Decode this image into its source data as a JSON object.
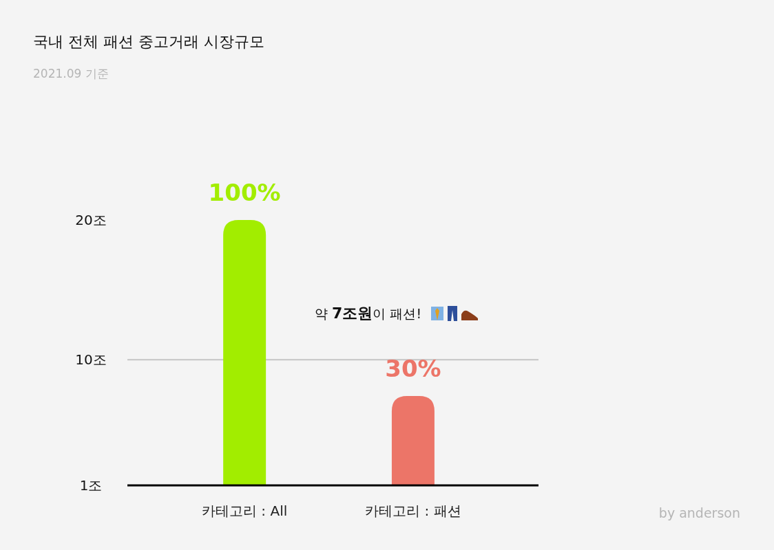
{
  "chart_data": {
    "type": "bar",
    "title": "국내 전체 패션 중고거래 시장규모",
    "subtitle": "2021.09 기준",
    "categories": [
      "카테고리 : All",
      "카테고리 : 패션"
    ],
    "values": [
      20,
      7.4
    ],
    "colors": [
      "#a2ed00",
      "#ec7568"
    ],
    "ylim": [
      1,
      20
    ],
    "yticks": [
      {
        "value": 1,
        "label": "1조"
      },
      {
        "value": 10,
        "label": "10조"
      },
      {
        "value": 20,
        "label": "20조"
      }
    ],
    "ref_lines": [
      {
        "axis": "y",
        "value": 10,
        "color": "#c4c4c4"
      }
    ],
    "annotations": [
      "약 **7조원**이 패션!",
      "by anderson",
      {
        "text": "100%",
        "x": "카테고리 : All",
        "y": 20
      },
      {
        "text": "30%",
        "x": "카테고리 : 패션",
        "y": 7.4
      }
    ]
  }
}
